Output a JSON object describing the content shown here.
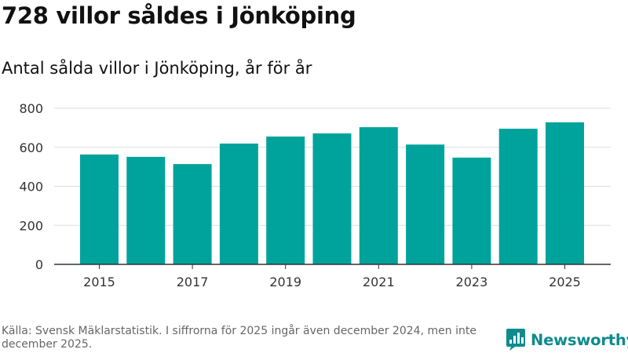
{
  "title": "728 villor såldes i Jönköping",
  "subtitle": "Antal sålda villor i Jönköping, år för år",
  "source": "Källa: Svensk Mäklarstatistik. I siffrorna för 2025 ingår även december 2024, men inte december 2025.",
  "brand": {
    "name": "Newsworthy",
    "icon": "bar-chart-logo-icon",
    "color": "#0f8b8d"
  },
  "colors": {
    "bar": "#00a39b",
    "grid": "#dddddd",
    "axis": "#333333",
    "text": "#333333"
  },
  "chart_data": {
    "type": "bar",
    "title": "728 villor såldes i Jönköping",
    "subtitle": "Antal sålda villor i Jönköping, år för år",
    "xlabel": "",
    "ylabel": "",
    "categories": [
      "2015",
      "2016",
      "2017",
      "2018",
      "2019",
      "2020",
      "2021",
      "2022",
      "2023",
      "2024",
      "2025"
    ],
    "values": [
      563,
      551,
      514,
      619,
      655,
      671,
      703,
      614,
      547,
      695,
      728
    ],
    "ylim": [
      0,
      800
    ],
    "yticks": [
      0,
      200,
      400,
      600,
      800
    ],
    "xtick_labels": [
      "2015",
      "2017",
      "2019",
      "2021",
      "2023",
      "2025"
    ],
    "grid": true,
    "legend": "none"
  }
}
